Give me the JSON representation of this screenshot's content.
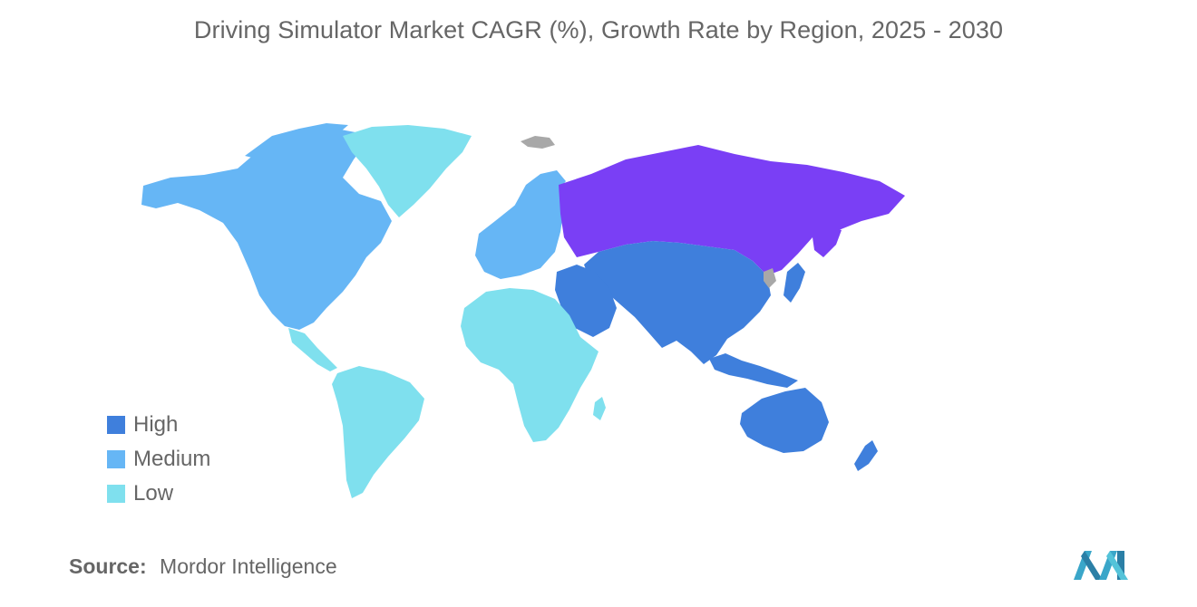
{
  "title": "Driving Simulator Market CAGR (%), Growth Rate by Region, 2025 - 2030",
  "legend": {
    "items": [
      {
        "label": "High",
        "color": "#3f7fdc"
      },
      {
        "label": "Medium",
        "color": "#66b6f5"
      },
      {
        "label": "Low",
        "color": "#7fe0ee"
      }
    ]
  },
  "regions": [
    {
      "name": "North America",
      "level": "Medium"
    },
    {
      "name": "Europe",
      "level": "Medium"
    },
    {
      "name": "Russia",
      "level": "Highlighted",
      "color": "#7a3ff5"
    },
    {
      "name": "Asia-Pacific",
      "level": "High"
    },
    {
      "name": "Middle East",
      "level": "High"
    },
    {
      "name": "Australia & New Zealand",
      "level": "High"
    },
    {
      "name": "Greenland",
      "level": "Low"
    },
    {
      "name": "South America",
      "level": "Low"
    },
    {
      "name": "Africa",
      "level": "Low"
    }
  ],
  "colors": {
    "high": "#3f7fdc",
    "medium": "#66b6f5",
    "low": "#7fe0ee",
    "russia": "#7a3ff5",
    "no_data": "#a8a8a8"
  },
  "source": {
    "label": "Source:",
    "value": "Mordor Intelligence"
  },
  "logo": {
    "icon": "mordor-intelligence-logo-icon"
  }
}
